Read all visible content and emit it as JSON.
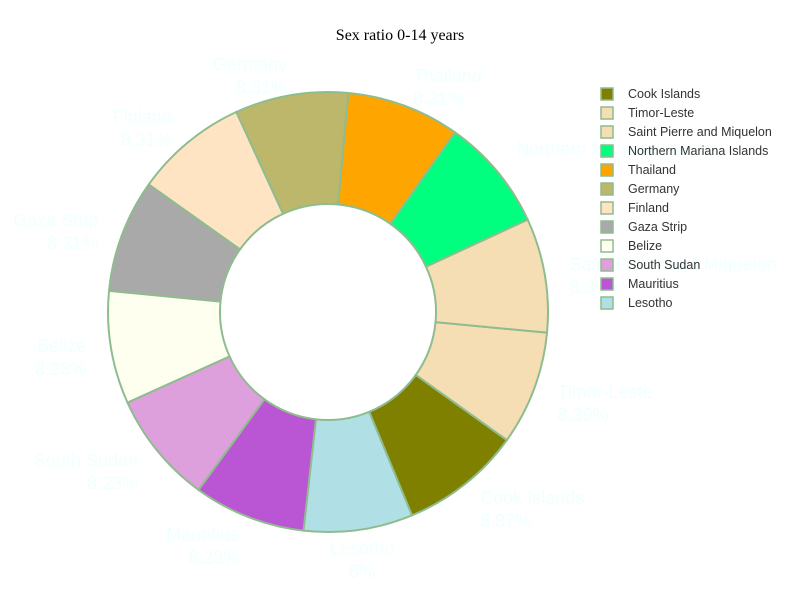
{
  "chart_data": {
    "type": "pie",
    "title": "Sex ratio 0-14 years",
    "hole": true,
    "legend_position": "right",
    "slice_border_color": "#8fbc8f",
    "label_color": "#f0ffff",
    "slices": [
      {
        "label": "Cook Islands",
        "percent_label": "8.87%",
        "value": 8.87,
        "color": "#808000"
      },
      {
        "label": "Timor-Leste",
        "percent_label": "8.39%",
        "value": 8.39,
        "color": "#f5deb3"
      },
      {
        "label": "Saint Pierre and Miquelon",
        "percent_label": "8.39%",
        "value": 8.39,
        "color": "#f5deb3"
      },
      {
        "label": "Northern Mariana Islands",
        "percent_label": "",
        "value": 8.31,
        "color": "#00ff7f"
      },
      {
        "label": "Thailand",
        "percent_label": "8.31%",
        "value": 8.31,
        "color": "#ffa500"
      },
      {
        "label": "Germany",
        "percent_label": "8.31%",
        "value": 8.31,
        "color": "#bdb76b"
      },
      {
        "label": "Finland",
        "percent_label": "8.31%",
        "value": 8.31,
        "color": "#ffe4c4"
      },
      {
        "label": "Gaza Strip",
        "percent_label": "8.31%",
        "value": 8.31,
        "color": "#a9a9a9"
      },
      {
        "label": "Belize",
        "percent_label": "8.28%",
        "value": 8.28,
        "color": "#fffff0"
      },
      {
        "label": "South Sudan",
        "percent_label": "8.23%",
        "value": 8.23,
        "color": "#dda0dd"
      },
      {
        "label": "Mauritius",
        "percent_label": "8.23%",
        "value": 8.23,
        "color": "#ba55d3"
      },
      {
        "label": "Lesotho",
        "percent_label": "8%",
        "value": 8.0,
        "color": "#b0e0e6"
      }
    ]
  }
}
